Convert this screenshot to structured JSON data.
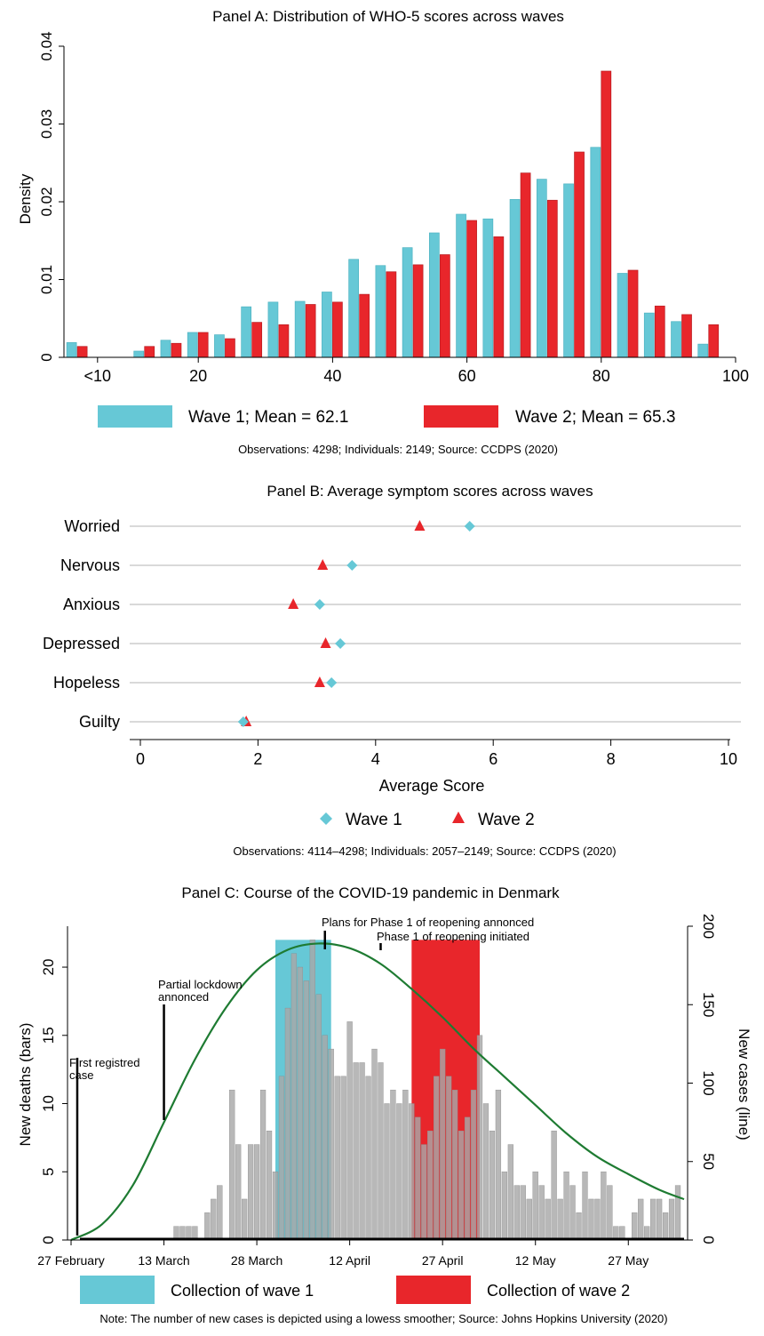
{
  "colors": {
    "wave1": "#66c8d6",
    "wave2": "#e8262b",
    "deaths": "#a8a8a8",
    "cases_line": "#1e7b32",
    "grid": "#d9d9d9"
  },
  "chart_data": [
    {
      "type": "bar",
      "title": "Panel A: Distribution of WHO-5 scores across waves",
      "xlabel": "",
      "ylabel": "Density",
      "ylim": [
        0,
        0.04
      ],
      "yticks": [
        "0",
        "0.01",
        "0.02",
        "0.03",
        "0.04"
      ],
      "xticks": [
        "<10",
        "20",
        "40",
        "60",
        "80",
        "100"
      ],
      "categories": [
        "<10",
        "12",
        "16",
        "20",
        "24",
        "28",
        "32",
        "36",
        "40",
        "44",
        "48",
        "52",
        "56",
        "60",
        "64",
        "68",
        "72",
        "76",
        "80",
        "84",
        "88",
        "92",
        "96"
      ],
      "series": [
        {
          "name": "Wave 1; Mean = 62.1",
          "values": [
            0.0019,
            0.0008,
            0.0022,
            0.0032,
            0.0029,
            0.0065,
            0.0071,
            0.0072,
            0.0084,
            0.0126,
            0.0118,
            0.0141,
            0.016,
            0.0184,
            0.0178,
            0.0203,
            0.0229,
            0.0223,
            0.027,
            0.0108,
            0.0057,
            0.0046,
            0.0017
          ]
        },
        {
          "name": "Wave 2; Mean = 65.3",
          "values": [
            0.0014,
            0.0014,
            0.0018,
            0.0032,
            0.0024,
            0.0045,
            0.0042,
            0.0068,
            0.0071,
            0.0081,
            0.011,
            0.0119,
            0.0132,
            0.0176,
            0.0155,
            0.0237,
            0.0202,
            0.0264,
            0.0368,
            0.0112,
            0.0066,
            0.0055,
            0.0042
          ]
        }
      ],
      "note": "Observations: 4298; Individuals: 2149; Source: CCDPS (2020)"
    },
    {
      "type": "scatter",
      "title": "Panel B: Average symptom scores across waves",
      "xlabel": "Average Score",
      "xlim": [
        0,
        10
      ],
      "xticks": [
        "0",
        "2",
        "4",
        "6",
        "8",
        "10"
      ],
      "categories": [
        "Worried",
        "Nervous",
        "Anxious",
        "Depressed",
        "Hopeless",
        "Guilty"
      ],
      "series": [
        {
          "name": "Wave 1",
          "values": [
            5.6,
            3.6,
            3.05,
            3.4,
            3.25,
            1.75
          ]
        },
        {
          "name": "Wave 2",
          "values": [
            4.75,
            3.1,
            2.6,
            3.15,
            3.05,
            1.8
          ]
        }
      ],
      "note": "Observations: 4114–4298; Individuals: 2057–2149; Source: CCDPS (2020)"
    },
    {
      "type": "bar",
      "title": "Panel C: Course of the COVID-19 pandemic in Denmark",
      "ylabel": "New deaths (bars)",
      "ylabel_right": "New cases (line)",
      "ylim": [
        0,
        23
      ],
      "yticks": [
        "0",
        "5",
        "10",
        "15",
        "20"
      ],
      "ylim_right": [
        0,
        200
      ],
      "yticks_right": [
        "0",
        "50",
        "100",
        "150",
        "200"
      ],
      "xlim": [
        0,
        99
      ],
      "xtick_values": [
        0,
        15,
        30,
        45,
        60,
        75,
        90
      ],
      "xticks": [
        "27 February",
        "13 March",
        "28 March",
        "12 April",
        "27 April",
        "12 May",
        "27 May"
      ],
      "deaths_start_day": 0,
      "deaths": [
        0,
        0,
        0,
        0,
        0,
        0,
        0,
        0,
        0,
        0,
        0,
        0,
        0,
        0,
        0,
        0,
        0,
        1,
        1,
        1,
        1,
        0,
        2,
        3,
        4,
        0,
        11,
        7,
        3,
        7,
        7,
        11,
        8,
        5,
        12,
        17,
        21,
        20,
        19,
        22,
        18,
        15,
        14,
        12,
        12,
        16,
        13,
        13,
        12,
        14,
        13,
        10,
        11,
        10,
        11,
        10,
        9,
        7,
        8,
        12,
        14,
        12,
        11,
        8,
        9,
        11,
        15,
        10,
        8,
        11,
        5,
        7,
        4,
        4,
        3,
        5,
        4,
        3,
        8,
        3,
        5,
        4,
        2,
        5,
        3,
        3,
        5,
        4,
        1,
        1,
        0,
        2,
        3,
        1,
        3,
        3,
        2,
        3,
        4
      ],
      "cases_line": [
        [
          0,
          0
        ],
        [
          5,
          10
        ],
        [
          10,
          35
        ],
        [
          15,
          75
        ],
        [
          20,
          115
        ],
        [
          25,
          148
        ],
        [
          30,
          172
        ],
        [
          35,
          185
        ],
        [
          40,
          189
        ],
        [
          45,
          186
        ],
        [
          50,
          176
        ],
        [
          55,
          160
        ],
        [
          60,
          142
        ],
        [
          65,
          122
        ],
        [
          70,
          104
        ],
        [
          75,
          86
        ],
        [
          80,
          68
        ],
        [
          85,
          53
        ],
        [
          90,
          42
        ],
        [
          95,
          32
        ],
        [
          99,
          26
        ]
      ],
      "wave1_window": [
        33,
        42
      ],
      "wave2_window": [
        55,
        66
      ],
      "annotations": [
        {
          "day": 1,
          "text": "First registred case",
          "lines": [
            "First registred",
            "case"
          ]
        },
        {
          "day": 15,
          "text": "Partial lockdown annonced",
          "lines": [
            "Partial lockdown",
            "annonced"
          ]
        },
        {
          "day": 41,
          "text": "Plans for Phase 1 of reopening annonced"
        },
        {
          "day": 50,
          "text": "Phase 1 of reopening initiated"
        }
      ],
      "legend": [
        "Collection of wave 1",
        "Collection of wave 2"
      ],
      "note": "Note: The number of new cases is depicted using a lowess smoother; Source: Johns Hopkins University (2020)"
    }
  ]
}
